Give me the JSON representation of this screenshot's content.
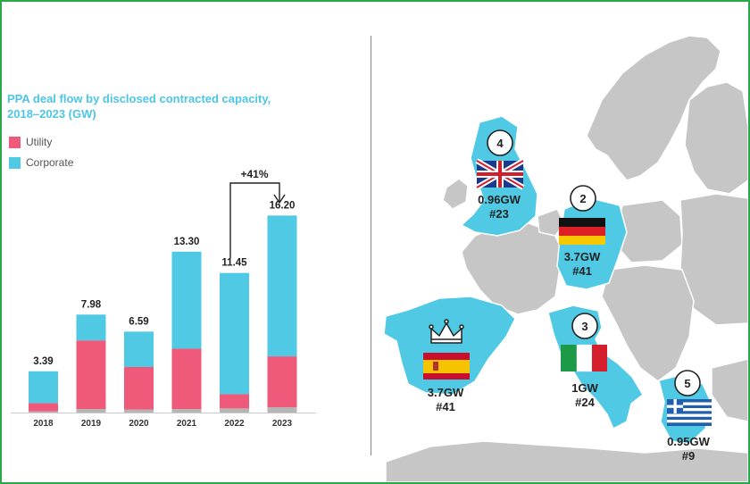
{
  "chart_data": {
    "type": "bar",
    "stacked": true,
    "title": "PPA deal flow by disclosed contracted capacity, 2018–2023 (GW)",
    "categories": [
      "2018",
      "2019",
      "2020",
      "2021",
      "2022",
      "2023"
    ],
    "totals": [
      "3.39",
      "7.98",
      "6.59",
      "13.30",
      "11.45",
      "16.20"
    ],
    "series": [
      {
        "name": "Utility",
        "color": "#ef5a7a",
        "values": [
          0.7,
          5.8,
          3.6,
          5.1,
          1.2,
          4.3
        ]
      },
      {
        "name": "Corporate",
        "color": "#4fc9e4",
        "values": [
          2.69,
          2.18,
          2.99,
          8.2,
          10.25,
          11.9
        ]
      }
    ],
    "unknown_color": "#b5b5b5",
    "unknown_values": [
      0.1,
      0.3,
      0.25,
      0.3,
      0.35,
      0.45
    ],
    "ylim": [
      0,
      17
    ],
    "growth_annotation": "+41%"
  },
  "legend": {
    "utility_label": "Utility",
    "corporate_label": "Corporate"
  },
  "map": {
    "markets": [
      {
        "country": "United Kingdom",
        "rank": "4",
        "capacity": "0.96GW",
        "deals": "#23"
      },
      {
        "country": "Germany",
        "rank": "2",
        "capacity": "3.7GW",
        "deals": "#41"
      },
      {
        "country": "Spain",
        "rank": "",
        "capacity": "3.7GW",
        "deals": "#41"
      },
      {
        "country": "Italy",
        "rank": "3",
        "capacity": "1GW",
        "deals": "#24"
      },
      {
        "country": "Greece",
        "rank": "5",
        "capacity": "0.95GW",
        "deals": "#9"
      }
    ],
    "highlight_color": "#4fc9e4",
    "land_color": "#c6c6c6"
  }
}
